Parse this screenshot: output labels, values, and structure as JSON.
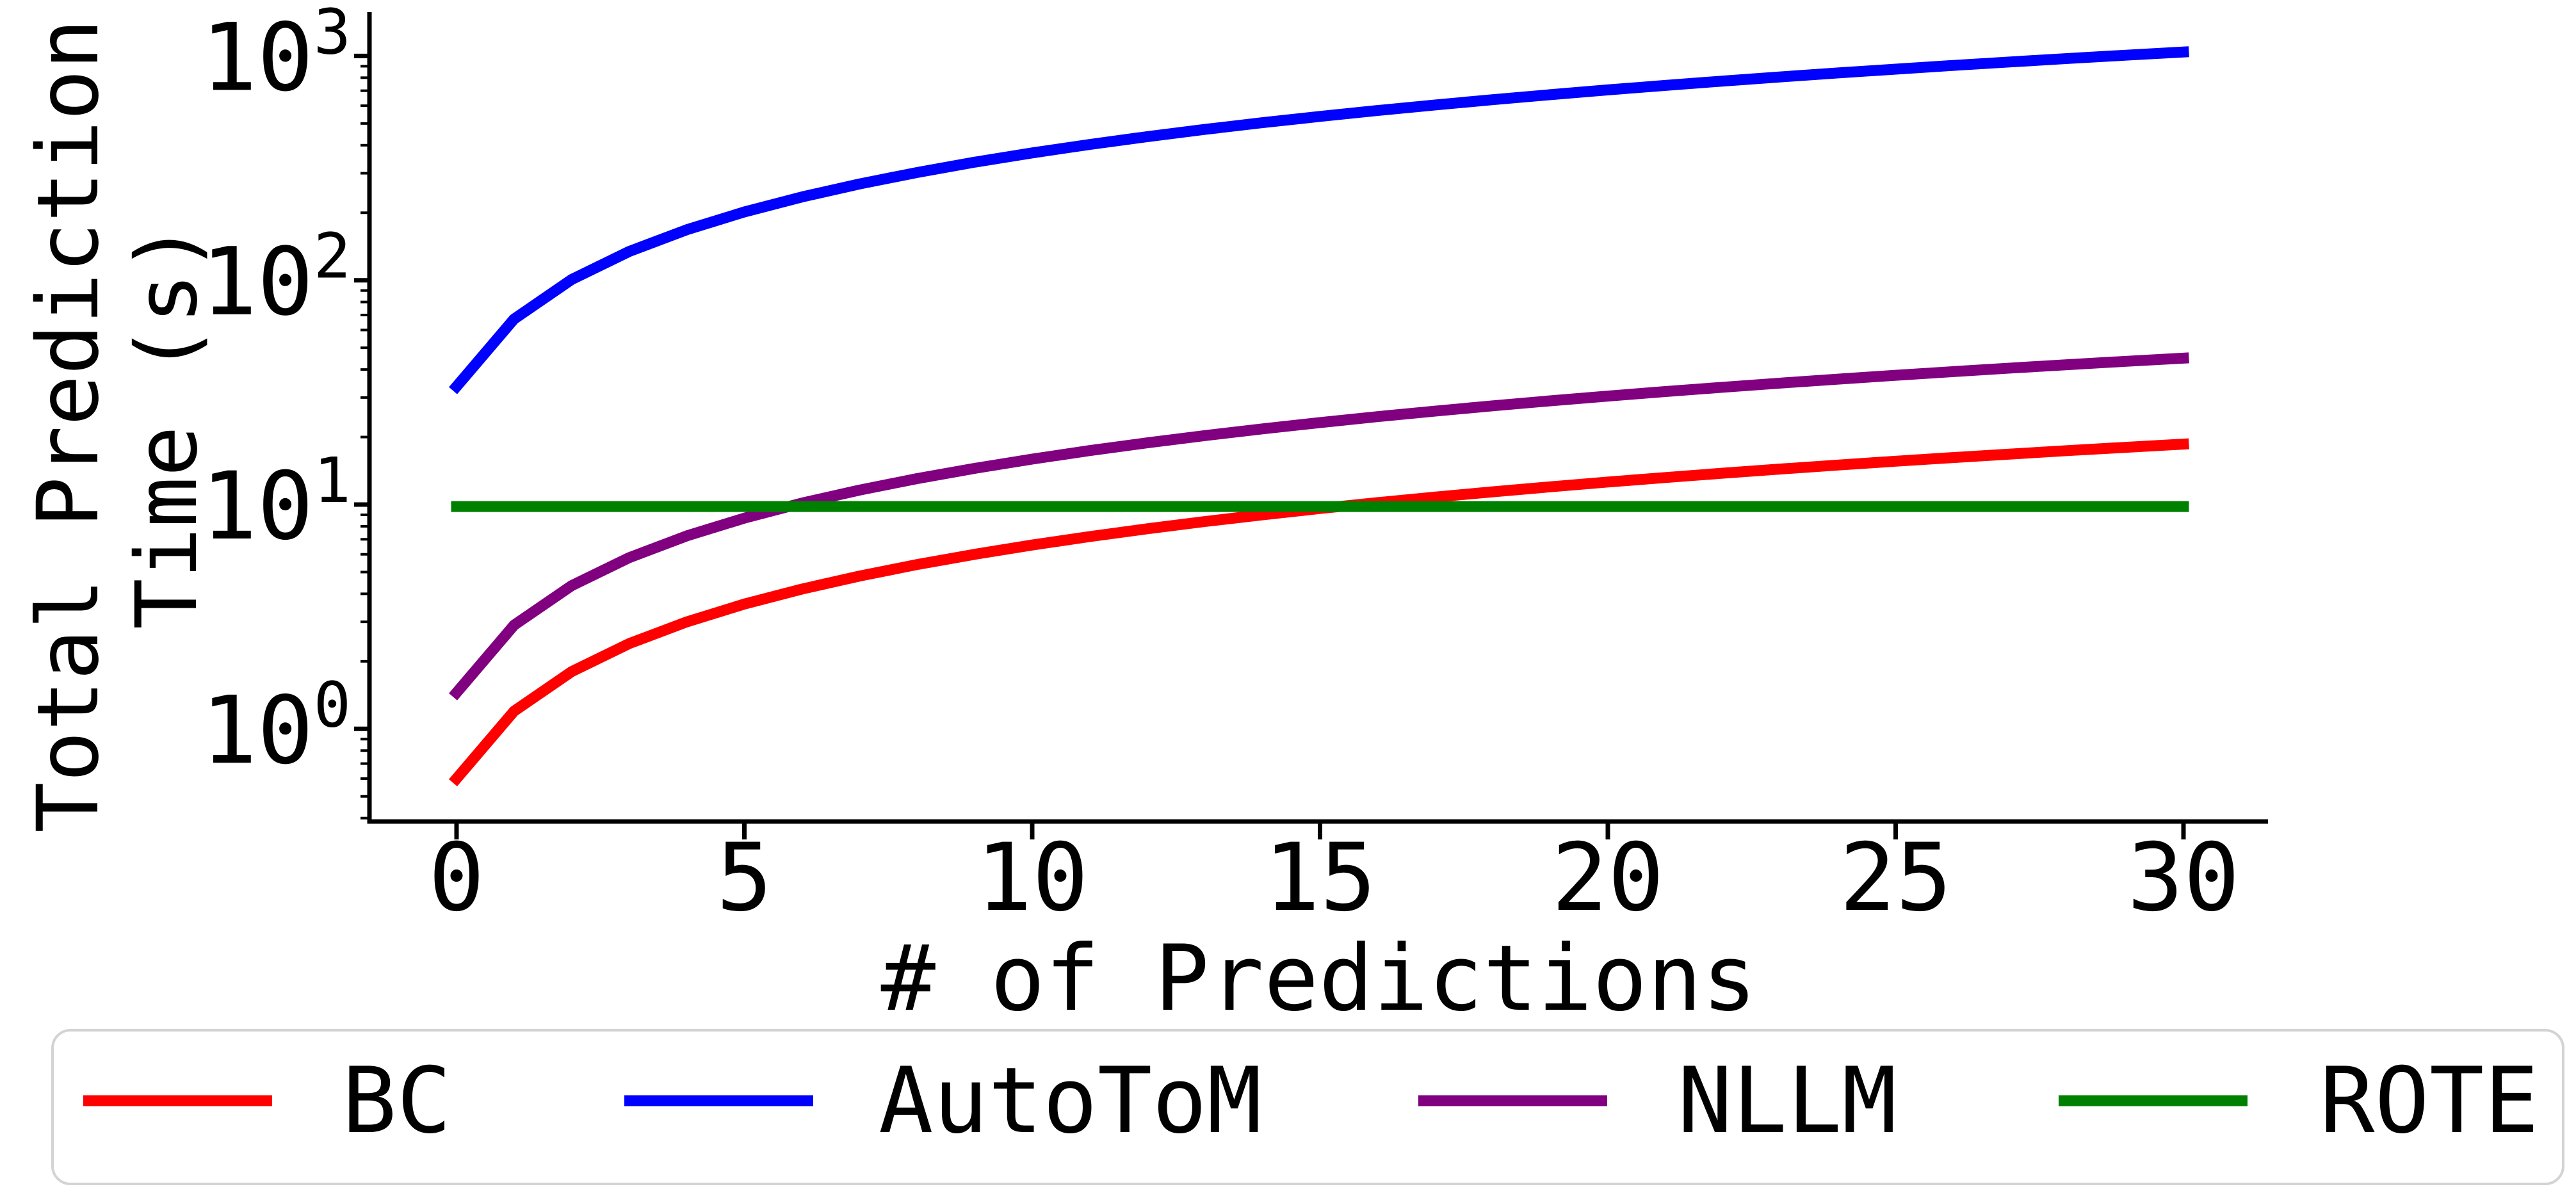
{
  "figure": {
    "background": "#ffffff",
    "text_color": "#000000"
  },
  "chart_data": {
    "type": "line",
    "title": "",
    "xlabel": "# of Predictions",
    "ylabel_lines": [
      "Total Prediction",
      "Time (s)"
    ],
    "y_scale": "log",
    "grid": false,
    "legend_position": "bottom",
    "xlim": [
      -1.47,
      31.5
    ],
    "ylim": [
      0.386,
      1557
    ],
    "x_ticks": [
      0,
      5,
      10,
      15,
      20,
      25,
      30
    ],
    "y_tick_base": "10",
    "y_tick_exponents": [
      0,
      1,
      2,
      3
    ],
    "x": [
      0,
      1,
      2,
      3,
      4,
      5,
      6,
      7,
      8,
      9,
      10,
      11,
      12,
      13,
      14,
      15,
      16,
      17,
      18,
      19,
      20,
      21,
      22,
      23,
      24,
      25,
      26,
      27,
      28,
      29,
      30
    ],
    "series": [
      {
        "name": "BC",
        "color": "#ff0000",
        "values": [
          0.6,
          1.2,
          1.8,
          2.4,
          3.0,
          3.6,
          4.2,
          4.8,
          5.4,
          6.0,
          6.6,
          7.2,
          7.8,
          8.4,
          9.0,
          9.6,
          10.2,
          10.8,
          11.4,
          12.0,
          12.6,
          13.2,
          13.8,
          14.4,
          15.0,
          15.6,
          16.2,
          16.8,
          17.4,
          18.0,
          18.6
        ]
      },
      {
        "name": "AutoToM",
        "color": "#0000ff",
        "values": [
          33.6,
          67.2,
          100.8,
          134.4,
          168.0,
          201.6,
          235.2,
          268.8,
          302.4,
          336.0,
          369.6,
          403.2,
          436.8,
          470.4,
          504.0,
          537.6,
          571.2,
          604.8,
          638.4,
          672.0,
          705.6,
          739.2,
          772.8,
          806.4,
          840.0,
          873.6,
          907.2,
          940.8,
          974.4,
          1008.0,
          1041.6
        ]
      },
      {
        "name": "NLLM",
        "color": "#800080",
        "values": [
          1.45,
          2.9,
          4.35,
          5.8,
          7.25,
          8.7,
          10.15,
          11.6,
          13.05,
          14.5,
          15.95,
          17.4,
          18.85,
          20.3,
          21.75,
          23.2,
          24.65,
          26.1,
          27.55,
          29.0,
          30.45,
          31.9,
          33.35,
          34.8,
          36.25,
          37.7,
          39.15,
          40.6,
          42.05,
          43.5,
          44.95
        ]
      },
      {
        "name": "ROTE",
        "color": "#008000",
        "values": [
          9.8,
          9.8,
          9.8,
          9.8,
          9.8,
          9.8,
          9.8,
          9.8,
          9.8,
          9.8,
          9.8,
          9.8,
          9.8,
          9.8,
          9.8,
          9.8,
          9.8,
          9.8,
          9.8,
          9.8,
          9.8,
          9.8,
          9.8,
          9.8,
          9.8,
          9.8,
          9.8,
          9.8,
          9.8,
          9.8,
          9.8
        ]
      }
    ]
  },
  "legend": {
    "labels": [
      "BC",
      "AutoToM",
      "NLLM",
      "ROTE"
    ],
    "border_color": "#d3d3d3",
    "background": "#ffffff"
  }
}
